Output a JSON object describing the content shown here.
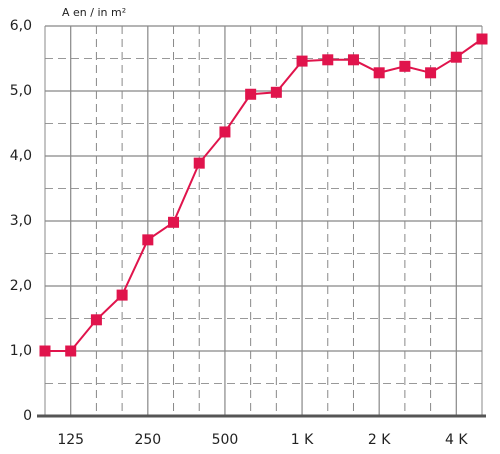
{
  "chart_data": {
    "type": "line",
    "y_label": "A en / in m²",
    "categories": [
      null,
      "125",
      null,
      null,
      "250",
      null,
      null,
      "500",
      null,
      null,
      "1 K",
      null,
      null,
      "2 K",
      null,
      null,
      "4 K",
      null
    ],
    "series": [
      {
        "color": "#e0144c",
        "values": [
          1.0,
          1.0,
          1.48,
          1.86,
          2.71,
          2.98,
          3.89,
          4.37,
          4.95,
          4.98,
          5.46,
          5.48,
          5.48,
          5.28,
          5.38,
          5.28,
          5.52,
          5.8
        ]
      }
    ],
    "ylim": [
      0,
      6
    ],
    "yticks": [
      0,
      {
        "value": 1,
        "label": "1,0"
      },
      {
        "value": 2,
        "label": "2,0"
      },
      {
        "value": 3,
        "label": "3,0"
      },
      {
        "value": 4,
        "label": "4,0"
      },
      {
        "value": 5,
        "label": "5,0"
      },
      {
        "value": 6,
        "label": "6,0"
      }
    ],
    "grid": true
  }
}
